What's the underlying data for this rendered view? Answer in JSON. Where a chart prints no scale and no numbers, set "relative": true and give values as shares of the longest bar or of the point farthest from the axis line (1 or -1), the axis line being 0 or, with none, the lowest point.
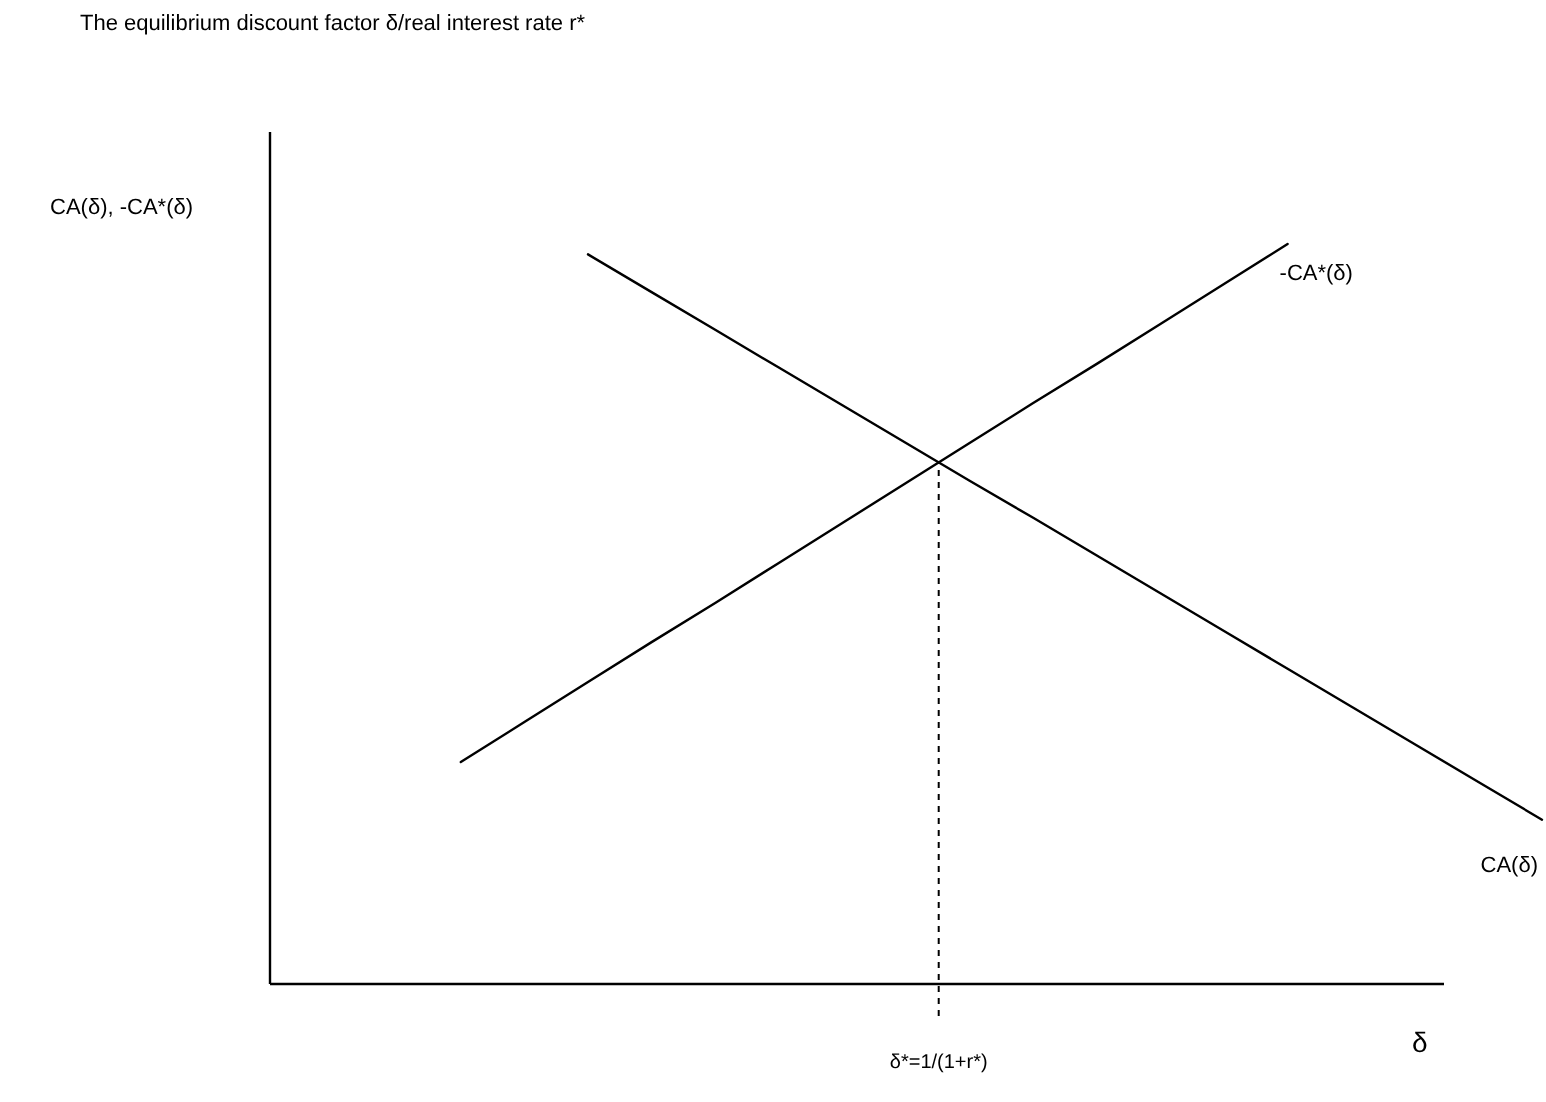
{
  "chart_data": {
    "type": "line",
    "title": "The equilibrium discount factor δ/real interest rate r*",
    "xlabel": "δ",
    "ylabel": "CA(δ), -CA*(δ)",
    "relative": true,
    "marker": "none",
    "line_style": "solid",
    "categories": [
      null,
      null,
      null,
      null,
      null,
      null,
      null,
      null,
      null,
      null,
      null,
      null,
      null,
      null,
      null,
      null,
      null,
      null,
      null,
      null,
      null
    ],
    "series": [
      {
        "name": "CA(δ)",
        "color": "#000000",
        "values": [
          null,
          null,
          null,
          null,
          null,
          0.986,
          0.935,
          0.884,
          0.833,
          0.782,
          0.731,
          0.68,
          0.63,
          0.579,
          0.528,
          0.477,
          0.426,
          0.375,
          0.324,
          0.273,
          0.222
        ]
      },
      {
        "name": "-CA*(δ)",
        "color": "#000000",
        "values": [
          null,
          null,
          null,
          0.3,
          0.354,
          0.408,
          0.462,
          0.515,
          0.569,
          0.623,
          0.677,
          0.731,
          0.785,
          0.838,
          0.892,
          0.946,
          1.0,
          null,
          null,
          null,
          null
        ]
      }
    ],
    "ref_lines": [
      {
        "axis": "x",
        "label": "δ*=1/(1+r*)",
        "line_style": "dashed",
        "color": "#000000"
      }
    ]
  }
}
